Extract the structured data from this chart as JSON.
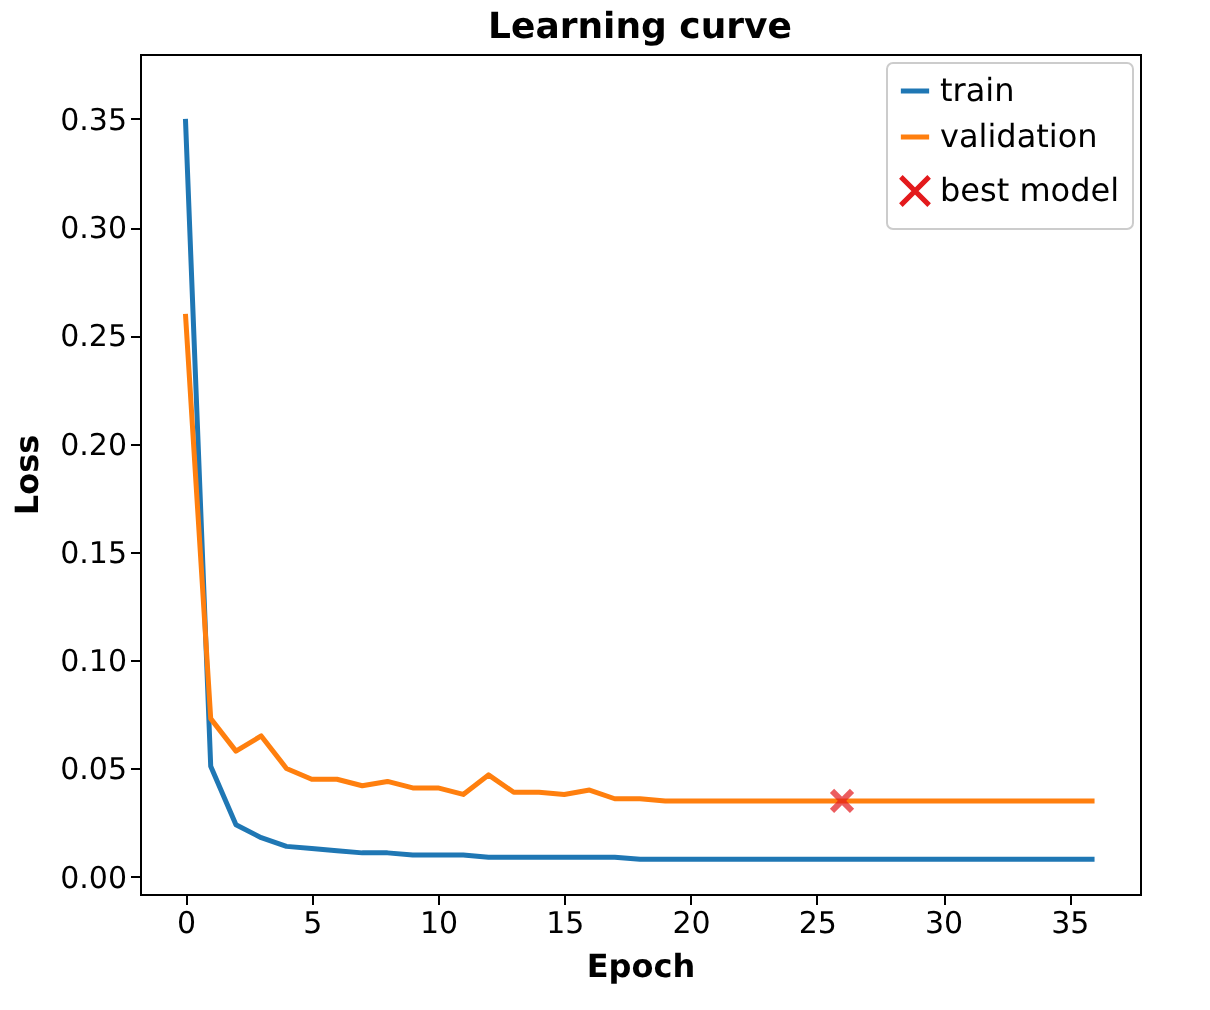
{
  "chart_data": {
    "type": "line",
    "title": "Learning curve",
    "xlabel": "Epoch",
    "ylabel": "Loss",
    "x": [
      0,
      1,
      2,
      3,
      4,
      5,
      6,
      7,
      8,
      9,
      10,
      11,
      12,
      13,
      14,
      15,
      16,
      17,
      18,
      19,
      20,
      21,
      22,
      23,
      24,
      25,
      26,
      27,
      28,
      29,
      30,
      31,
      32,
      33,
      34,
      35,
      36
    ],
    "series": [
      {
        "name": "train",
        "color": "#1f77b4",
        "values": [
          0.35,
          0.051,
          0.024,
          0.018,
          0.014,
          0.013,
          0.012,
          0.011,
          0.011,
          0.01,
          0.01,
          0.01,
          0.009,
          0.009,
          0.009,
          0.009,
          0.009,
          0.009,
          0.008,
          0.008,
          0.008,
          0.008,
          0.008,
          0.008,
          0.008,
          0.008,
          0.008,
          0.008,
          0.008,
          0.008,
          0.008,
          0.008,
          0.008,
          0.008,
          0.008,
          0.008,
          0.008
        ]
      },
      {
        "name": "validation",
        "color": "#ff7f0e",
        "values": [
          0.26,
          0.073,
          0.058,
          0.065,
          0.05,
          0.045,
          0.045,
          0.042,
          0.044,
          0.041,
          0.041,
          0.038,
          0.047,
          0.039,
          0.039,
          0.038,
          0.04,
          0.036,
          0.036,
          0.035,
          0.035,
          0.035,
          0.035,
          0.035,
          0.035,
          0.035,
          0.035,
          0.035,
          0.035,
          0.035,
          0.035,
          0.035,
          0.035,
          0.035,
          0.035,
          0.035,
          0.035
        ]
      },
      {
        "name": "best model",
        "type": "scatter",
        "marker": "cross",
        "color": "#e31a1c",
        "x": [
          26
        ],
        "values": [
          0.035
        ]
      }
    ],
    "xlim": [
      -1.8,
      37.8
    ],
    "xticks": [
      0,
      5,
      10,
      15,
      20,
      25,
      30,
      35
    ],
    "ylim": [
      -0.008,
      0.38
    ],
    "yticks": [
      {
        "value": 0,
        "label": "0.00"
      },
      0.05,
      {
        "value": 0.1,
        "label": "0.10"
      },
      0.15,
      {
        "value": 0.2,
        "label": "0.20"
      },
      0.25,
      {
        "value": 0.3,
        "label": "0.30"
      },
      0.35
    ],
    "grid": false,
    "legend": "top right"
  }
}
